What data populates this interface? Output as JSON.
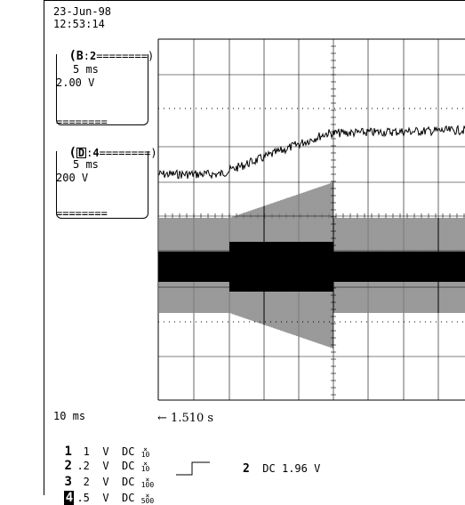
{
  "header": {
    "date": "23-Jun-98",
    "time": "12:53:14"
  },
  "traces": [
    {
      "id": "B",
      "channel": "2",
      "timebase": "5 ms",
      "volts": "2.00 V",
      "badge_style": "bold",
      "separator": "========"
    },
    {
      "id": "D",
      "channel": "4",
      "timebase": "5 ms",
      "volts": "200 V",
      "badge_style": "outline",
      "separator": "========"
    }
  ],
  "timebase": {
    "label": "10 ms",
    "delay_arrow": "←",
    "delay_value": "1.510 s"
  },
  "channels": [
    {
      "num": "1",
      "scale": " 1",
      "unit": "V",
      "coupling": "DC",
      "probe_x": "×",
      "probe_factor": "10",
      "style": "bold"
    },
    {
      "num": "2",
      "scale": ".2",
      "unit": "V",
      "coupling": "DC",
      "probe_x": "×",
      "probe_factor": "10",
      "style": "bold"
    },
    {
      "num": "3",
      "scale": " 2",
      "unit": "V",
      "coupling": "DC",
      "probe_x": "×",
      "probe_factor": "100",
      "style": "bold"
    },
    {
      "num": "4",
      "scale": ".5",
      "unit": "V",
      "coupling": "DC",
      "probe_x": "×",
      "probe_factor": "500",
      "style": "inverse"
    }
  ],
  "trigger": {
    "icon": "rising-edge-icon",
    "source": "2",
    "coupling": "DC",
    "level": "1.96 V"
  }
}
